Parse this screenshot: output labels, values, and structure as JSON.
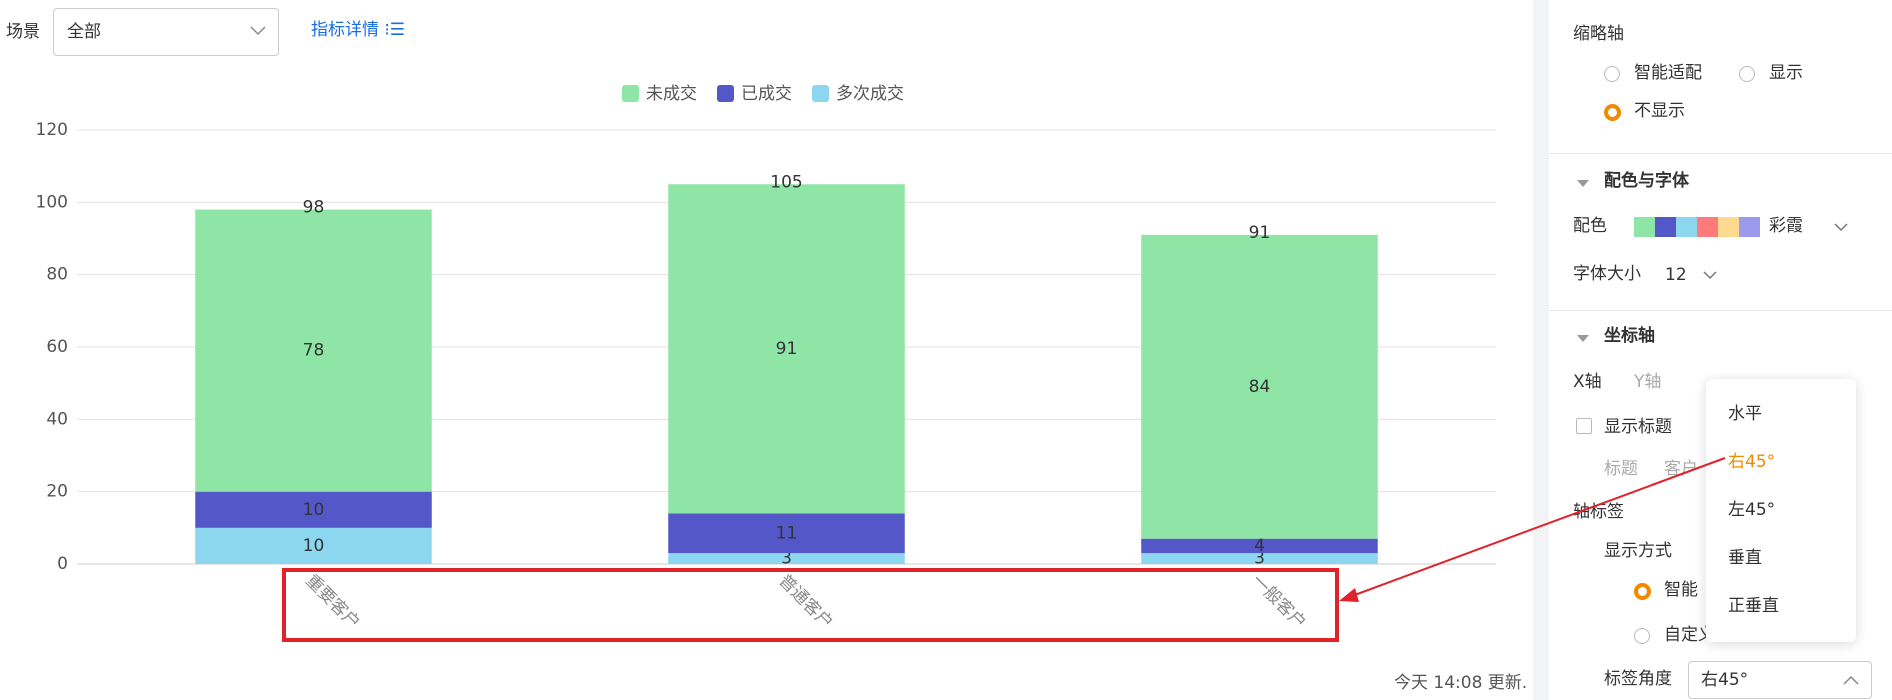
{
  "toolbar": {
    "scene_label": "场景",
    "scene_value": "全部",
    "detail_link": "指标详情"
  },
  "chart_data": {
    "type": "stacked_bar",
    "categories": [
      "重要客户",
      "普通客户",
      "一般客户"
    ],
    "series": [
      {
        "name": "未成交",
        "color": "#8ee5a6",
        "values": [
          78,
          91,
          84
        ]
      },
      {
        "name": "已成交",
        "color": "#5457c8",
        "values": [
          10,
          11,
          4
        ]
      },
      {
        "name": "多次成交",
        "color": "#8dd6f0",
        "values": [
          10,
          3,
          3
        ]
      }
    ],
    "totals": [
      98,
      105,
      91
    ],
    "ylim": [
      0,
      120
    ],
    "yticks": [
      0,
      20,
      40,
      60,
      80,
      100,
      120
    ],
    "grid": true,
    "legend": "top"
  },
  "footer": "今天 14:08 更新.",
  "panel": {
    "thumb_axis": {
      "title": "缩略轴",
      "options": [
        "智能适配",
        "显示",
        "不显示"
      ]
    },
    "color_font": {
      "title": "配色与字体",
      "palette_label": "配色",
      "palette_name": "彩霞",
      "palette": [
        "#8ee5a6",
        "#5457c8",
        "#8dd6f0",
        "#ff7b7b",
        "#ffd98e",
        "#9b9bee"
      ],
      "font_size_label": "字体大小",
      "font_size": "12"
    },
    "axis": {
      "title": "坐标轴",
      "tabs": [
        "X轴",
        "Y轴"
      ],
      "show_title": "显示标题",
      "title_label": "标题",
      "title_value": "客户",
      "axis_label": "轴标签",
      "display_mode": "显示方式",
      "modes": [
        "智能",
        "自定义"
      ],
      "angle_label": "标签角度",
      "angle_value": "右45°"
    },
    "dropdown": [
      "水平",
      "右45°",
      "左45°",
      "垂直",
      "正垂直"
    ]
  }
}
